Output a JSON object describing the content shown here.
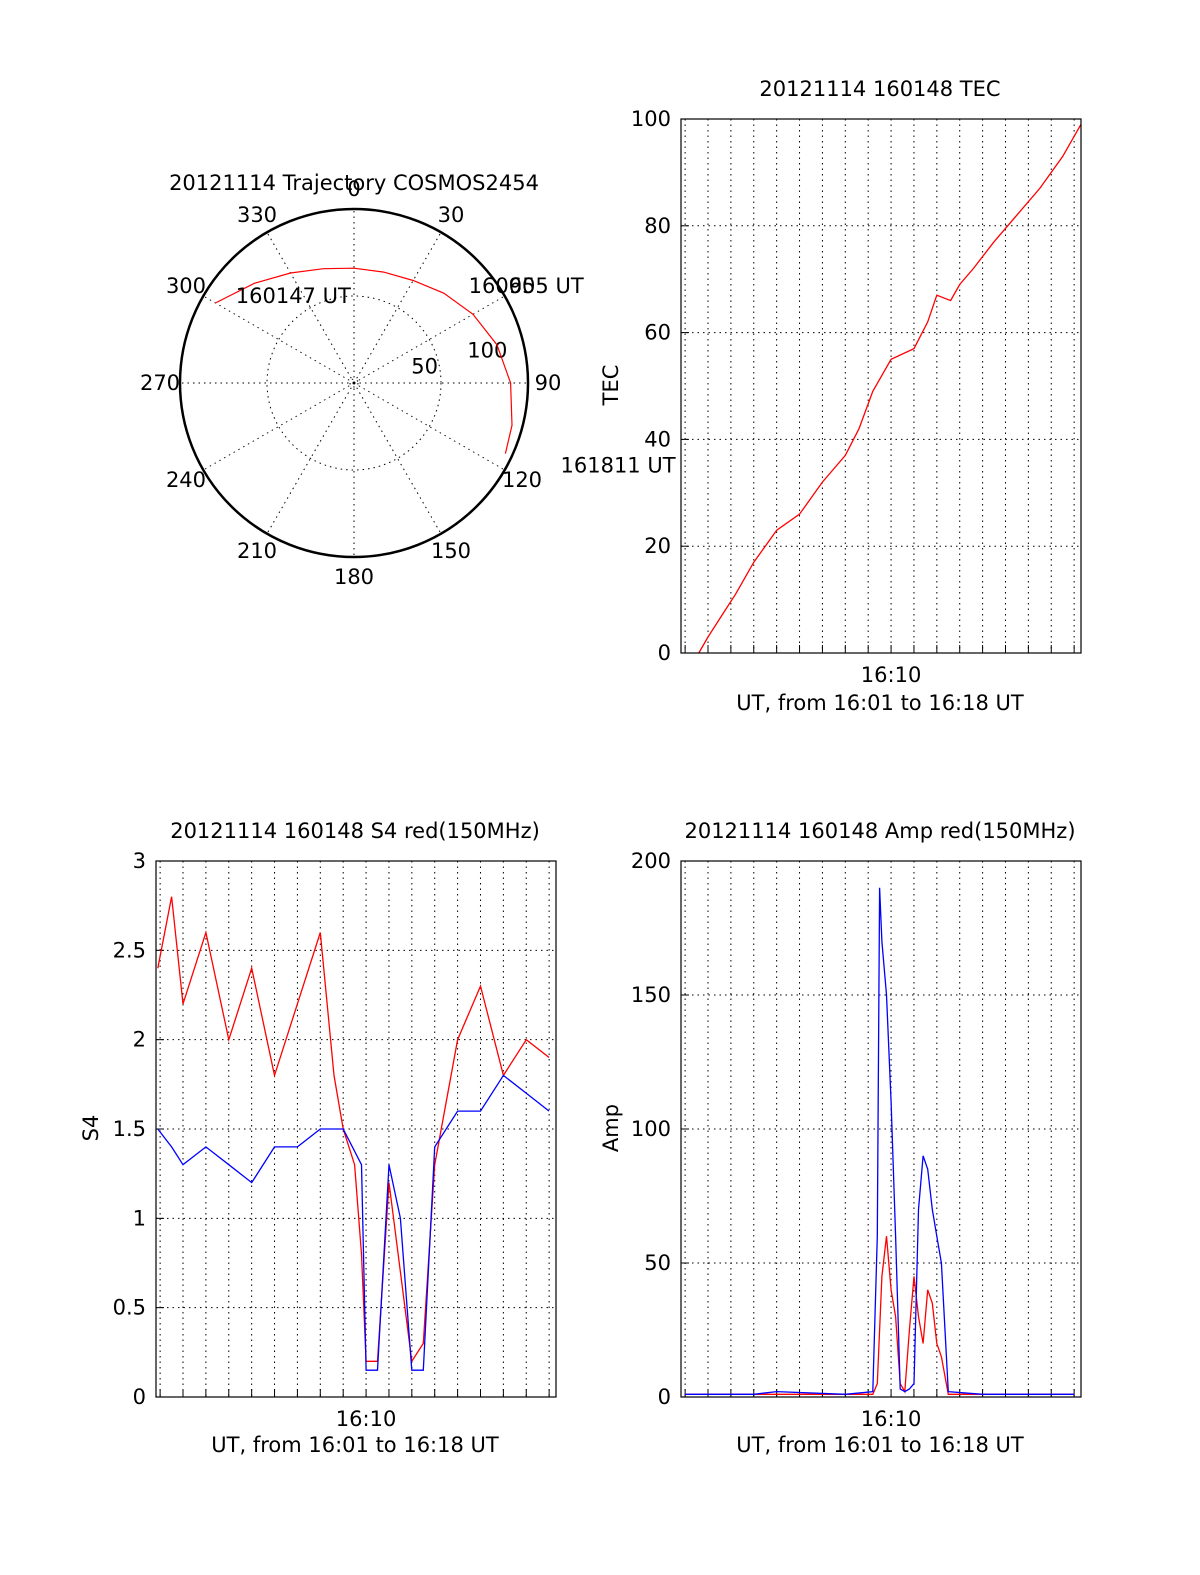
{
  "chart_data": [
    {
      "type": "polar",
      "title": "20121114 Trajectory COSMOS2454",
      "azimuth_labels": [
        "0",
        "30",
        "60",
        "90",
        "120",
        "150",
        "180",
        "210",
        "240",
        "270",
        "300",
        "330"
      ],
      "elevation_labels": [
        "50",
        "100"
      ],
      "rlim": [
        0,
        100
      ],
      "grid": true,
      "series": [
        {
          "color": "#ff0000",
          "points": [
            {
              "az": 300,
              "r": 92
            },
            {
              "az": 315,
              "r": 81
            },
            {
              "az": 330,
              "r": 73
            },
            {
              "az": 345,
              "r": 68
            },
            {
              "az": 0,
              "r": 66
            },
            {
              "az": 15,
              "r": 66
            },
            {
              "az": 30,
              "r": 68
            },
            {
              "az": 45,
              "r": 73
            },
            {
              "az": 60,
              "r": 79
            },
            {
              "az": 75,
              "r": 85
            },
            {
              "az": 90,
              "r": 90
            },
            {
              "az": 105,
              "r": 94
            },
            {
              "az": 115,
              "r": 96
            }
          ]
        }
      ],
      "annotations": [
        {
          "text": "160147 UT",
          "az": 306,
          "r": 84
        },
        {
          "text": "160955 UT",
          "az": 50,
          "r": 86
        },
        {
          "text": "161811 UT",
          "az": 112,
          "r": 128
        }
      ]
    },
    {
      "type": "line",
      "title": "20121114 160148 TEC",
      "ylabel": "TEC",
      "xlabel": "UT, from 16:01 to 16:18 UT",
      "xtick_labels": [
        "16:10"
      ],
      "x_tick_values": [
        10
      ],
      "x_range": [
        0.82,
        18.3
      ],
      "ylim": [
        0,
        100
      ],
      "yticks": [
        0,
        20,
        40,
        60,
        80,
        100
      ],
      "grid": true,
      "series": [
        {
          "color": "#ff0000",
          "x": [
            1.6,
            2.0,
            2.6,
            3.2,
            4.0,
            5.0,
            6.0,
            7.0,
            8.0,
            8.6,
            9.2,
            10.0,
            11.0,
            11.6,
            12.0,
            12.6,
            13.0,
            13.6,
            14.5,
            15.5,
            16.5,
            17.5,
            18.3
          ],
          "y": [
            0,
            3,
            7,
            11,
            17,
            23,
            26,
            32,
            37,
            42,
            49,
            55,
            57,
            62,
            67,
            66,
            69,
            72,
            77,
            82,
            87,
            93,
            99
          ]
        }
      ]
    },
    {
      "type": "line",
      "title": "20121114 160148 S4 red(150MHz)",
      "ylabel": "S4",
      "xlabel": "UT, from 16:01 to 16:18 UT",
      "xtick_labels": [
        "16:10"
      ],
      "x_tick_values": [
        10
      ],
      "x_range": [
        0.82,
        18.3
      ],
      "ylim": [
        0,
        3
      ],
      "yticks": [
        0,
        0.5,
        1,
        1.5,
        2,
        2.5,
        3
      ],
      "ytick_labels": [
        "0",
        "0.5",
        "1",
        "1.5",
        "2",
        "2.5",
        "3"
      ],
      "grid": true,
      "series": [
        {
          "color": "#ff0000",
          "x": [
            0.9,
            1.5,
            2.0,
            3.0,
            4.0,
            5.0,
            6.0,
            7.0,
            8.0,
            8.6,
            9.0,
            9.5,
            9.8,
            10.0,
            10.5,
            11.0,
            11.5,
            12.0,
            12.5,
            13.0,
            14.0,
            15.0,
            16.0,
            17.0,
            18.0
          ],
          "y": [
            2.4,
            2.8,
            2.2,
            2.6,
            2.0,
            2.4,
            1.8,
            2.2,
            2.6,
            1.8,
            1.5,
            1.3,
            0.8,
            0.2,
            0.2,
            1.2,
            0.7,
            0.2,
            0.3,
            1.3,
            2.0,
            2.3,
            1.8,
            2.0,
            1.9
          ]
        },
        {
          "color": "#0000ff",
          "x": [
            0.9,
            1.5,
            2.0,
            3.0,
            4.0,
            5.0,
            6.0,
            7.0,
            8.0,
            9.0,
            9.8,
            10.0,
            10.5,
            11.0,
            11.5,
            12.0,
            12.5,
            13.0,
            14.0,
            15.0,
            16.0,
            17.0,
            18.0
          ],
          "y": [
            1.5,
            1.4,
            1.3,
            1.4,
            1.3,
            1.2,
            1.4,
            1.4,
            1.5,
            1.5,
            1.3,
            0.15,
            0.15,
            1.3,
            1.0,
            0.15,
            0.15,
            1.4,
            1.6,
            1.6,
            1.8,
            1.7,
            1.6
          ]
        }
      ]
    },
    {
      "type": "line",
      "title": "20121114 160148 Amp red(150MHz)",
      "ylabel": "Amp",
      "xlabel": "UT, from 16:01 to 16:18 UT",
      "xtick_labels": [
        "16:10"
      ],
      "x_tick_values": [
        10
      ],
      "x_range": [
        0.82,
        18.3
      ],
      "ylim": [
        0,
        200
      ],
      "yticks": [
        0,
        50,
        100,
        150,
        200
      ],
      "grid": true,
      "series": [
        {
          "color": "#ff0000",
          "x": [
            1.0,
            4.0,
            8.0,
            9.2,
            9.4,
            9.6,
            9.8,
            10.0,
            10.2,
            10.4,
            10.6,
            10.8,
            11.0,
            11.2,
            11.4,
            11.6,
            11.8,
            12.0,
            12.2,
            12.5,
            14.0,
            18.0
          ],
          "y": [
            1,
            1,
            1,
            1,
            5,
            45,
            60,
            40,
            30,
            5,
            2,
            25,
            45,
            30,
            20,
            40,
            35,
            20,
            15,
            1,
            1,
            1
          ]
        },
        {
          "color": "#0000ff",
          "x": [
            1.0,
            4.0,
            5.0,
            8.0,
            9.2,
            9.4,
            9.5,
            9.6,
            9.8,
            10.0,
            10.2,
            10.4,
            10.6,
            10.8,
            11.0,
            11.2,
            11.4,
            11.6,
            11.8,
            12.0,
            12.2,
            12.5,
            14.0,
            18.0
          ],
          "y": [
            1,
            1,
            2,
            1,
            2,
            60,
            190,
            170,
            150,
            110,
            60,
            3,
            2,
            3,
            5,
            70,
            90,
            85,
            70,
            60,
            50,
            2,
            1,
            1
          ]
        }
      ]
    }
  ]
}
